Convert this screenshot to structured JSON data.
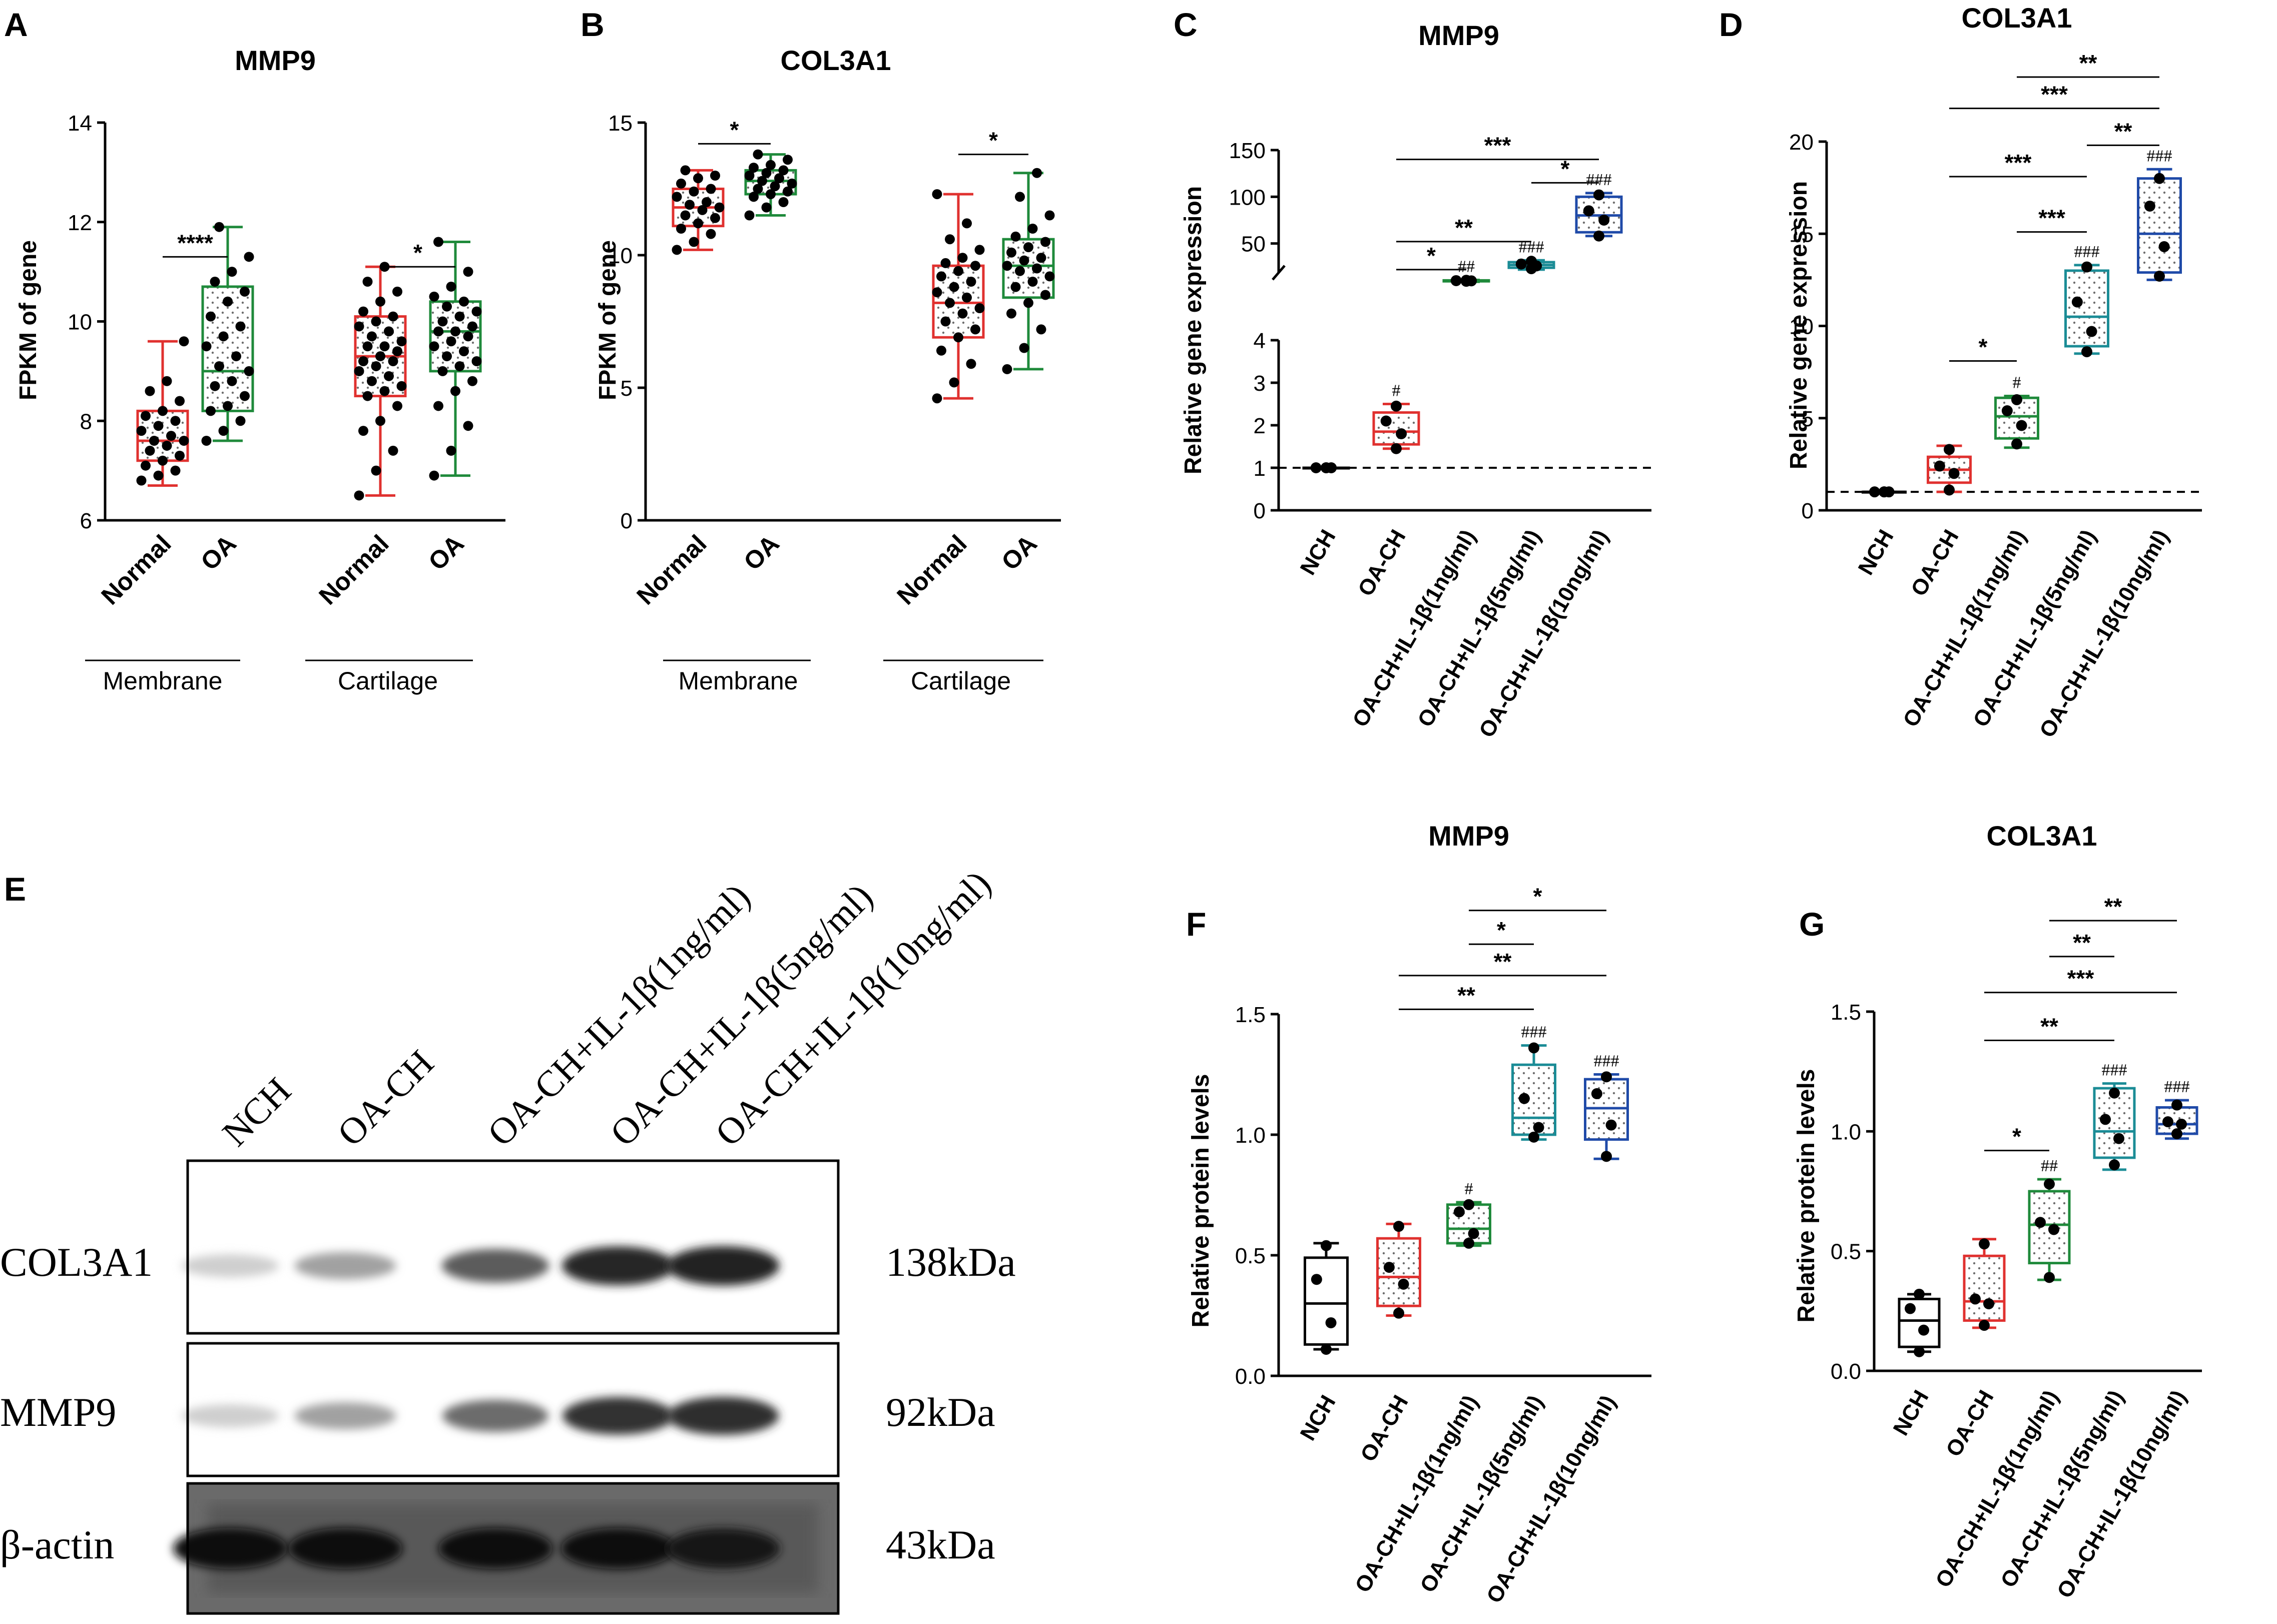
{
  "figure": {
    "colors": {
      "red": "#e0312f",
      "green": "#1f8a3b",
      "teal": "#1b8c96",
      "blue": "#1f4aa8",
      "black": "#000000"
    }
  },
  "panels": {
    "A": {
      "label": "A"
    },
    "B": {
      "label": "B"
    },
    "C": {
      "label": "C"
    },
    "D": {
      "label": "D"
    },
    "E": {
      "label": "E"
    },
    "F": {
      "label": "F"
    },
    "G": {
      "label": "G"
    }
  },
  "chart_data": [
    {
      "id": "A",
      "type": "box",
      "title": "MMP9",
      "ylabel": "FPKM of gene",
      "ylim": [
        6,
        14
      ],
      "yticks": [
        6,
        8,
        10,
        12,
        14
      ],
      "categories": [
        "Normal",
        "OA",
        "Normal",
        "OA"
      ],
      "groups": [
        "Membrane",
        "Cartilage"
      ],
      "colors": [
        "#e0312f",
        "#1f8a3b",
        "#e0312f",
        "#1f8a3b"
      ],
      "boxes": [
        {
          "min": 6.7,
          "q1": 7.2,
          "median": 7.6,
          "q3": 8.2,
          "max": 9.6
        },
        {
          "min": 7.6,
          "q1": 8.2,
          "median": 9.0,
          "q3": 10.7,
          "max": 11.9
        },
        {
          "min": 6.5,
          "q1": 8.5,
          "median": 9.3,
          "q3": 10.1,
          "max": 11.1
        },
        {
          "min": 6.9,
          "q1": 9.0,
          "median": 9.8,
          "q3": 10.4,
          "max": 11.6
        }
      ],
      "points": [
        [
          6.8,
          6.9,
          7.0,
          7.1,
          7.2,
          7.3,
          7.4,
          7.5,
          7.6,
          7.6,
          7.7,
          7.8,
          7.9,
          8.0,
          8.1,
          8.2,
          8.4,
          8.6,
          8.8,
          9.6
        ],
        [
          7.6,
          7.8,
          8.0,
          8.2,
          8.3,
          8.5,
          8.7,
          8.8,
          9.0,
          9.1,
          9.3,
          9.5,
          9.7,
          9.9,
          10.1,
          10.4,
          10.6,
          10.8,
          11.0,
          11.3,
          11.9
        ],
        [
          6.5,
          7.0,
          7.4,
          7.8,
          8.0,
          8.3,
          8.5,
          8.6,
          8.7,
          8.8,
          8.9,
          9.0,
          9.1,
          9.2,
          9.2,
          9.3,
          9.4,
          9.5,
          9.5,
          9.6,
          9.7,
          9.8,
          9.9,
          10.0,
          10.1,
          10.2,
          10.4,
          10.6,
          10.8,
          11.1
        ],
        [
          6.9,
          7.4,
          7.9,
          8.3,
          8.6,
          8.8,
          9.0,
          9.1,
          9.2,
          9.3,
          9.4,
          9.5,
          9.6,
          9.7,
          9.8,
          9.8,
          9.9,
          10.0,
          10.1,
          10.2,
          10.3,
          10.4,
          10.5,
          10.7,
          11.0,
          11.6
        ]
      ],
      "brackets": [
        {
          "from": 0,
          "to": 1,
          "label": "****",
          "y": 11.3
        },
        {
          "from": 2,
          "to": 3,
          "label": "*",
          "y": 11.1
        }
      ]
    },
    {
      "id": "B",
      "type": "box",
      "title": "COL3A1",
      "ylabel": "FPKM of gene",
      "ylim": [
        0,
        15
      ],
      "yticks": [
        0,
        5,
        10,
        15
      ],
      "categories": [
        "Normal",
        "OA",
        "Normal",
        "OA"
      ],
      "groups": [
        "Membrane",
        "Cartilage"
      ],
      "colors": [
        "#e0312f",
        "#1f8a3b",
        "#e0312f",
        "#1f8a3b"
      ],
      "boxes": [
        {
          "min": 10.2,
          "q1": 11.1,
          "median": 11.8,
          "q3": 12.5,
          "max": 13.2
        },
        {
          "min": 11.5,
          "q1": 12.3,
          "median": 12.8,
          "q3": 13.2,
          "max": 13.8
        },
        {
          "min": 4.6,
          "q1": 6.9,
          "median": 8.2,
          "q3": 9.6,
          "max": 12.3
        },
        {
          "min": 5.7,
          "q1": 8.4,
          "median": 9.6,
          "q3": 10.6,
          "max": 13.1
        }
      ],
      "points": [
        [
          10.2,
          10.5,
          10.8,
          11.0,
          11.2,
          11.4,
          11.5,
          11.7,
          11.8,
          11.9,
          12.0,
          12.2,
          12.4,
          12.5,
          12.7,
          12.9,
          13.0,
          13.2
        ],
        [
          11.5,
          11.8,
          12.0,
          12.2,
          12.3,
          12.4,
          12.5,
          12.6,
          12.7,
          12.8,
          12.9,
          13.0,
          13.1,
          13.2,
          13.3,
          13.4,
          13.6,
          13.8
        ],
        [
          4.6,
          5.2,
          5.9,
          6.4,
          6.9,
          7.2,
          7.5,
          7.8,
          8.0,
          8.2,
          8.4,
          8.6,
          8.8,
          9.0,
          9.2,
          9.4,
          9.6,
          9.7,
          9.9,
          10.2,
          10.6,
          11.2,
          12.3
        ],
        [
          5.7,
          6.5,
          7.2,
          7.8,
          8.2,
          8.5,
          8.8,
          9.0,
          9.2,
          9.4,
          9.5,
          9.6,
          9.8,
          9.9,
          10.1,
          10.3,
          10.5,
          10.7,
          11.0,
          11.5,
          12.2,
          13.1
        ]
      ],
      "brackets": [
        {
          "from": 0,
          "to": 1,
          "label": "*",
          "y": 14.2
        },
        {
          "from": 2,
          "to": 3,
          "label": "*",
          "y": 13.8
        }
      ]
    },
    {
      "id": "C",
      "type": "box",
      "title": "MMP9",
      "ylabel": "Relative gene expression",
      "broken_axis": true,
      "ylim_lower": [
        0,
        4
      ],
      "yticks_lower": [
        0,
        1,
        2,
        3,
        4
      ],
      "ylim_upper": [
        0,
        150
      ],
      "yticks_upper": [
        50,
        100,
        150
      ],
      "reference_line": 1,
      "categories": [
        "NCH",
        "OA-CH",
        "OA-CH+IL-1β(1ng/ml)",
        "OA-CH+IL-1β(5ng/ml)",
        "OA-CH+IL-1β(10ng/ml)"
      ],
      "colors": [
        "#000000",
        "#e0312f",
        "#1f8a3b",
        "#1b8c96",
        "#1f4aa8"
      ],
      "boxes": [
        {
          "min": 1.0,
          "q1": 1.0,
          "median": 1.0,
          "q3": 1.0,
          "max": 1.0
        },
        {
          "min": 1.45,
          "q1": 1.55,
          "median": 1.85,
          "q3": 2.3,
          "max": 2.5
        },
        {
          "min": 9,
          "q1": 9.5,
          "median": 10,
          "q3": 10.5,
          "max": 11
        },
        {
          "min": 22,
          "q1": 24,
          "median": 27,
          "q3": 30,
          "max": 32
        },
        {
          "min": 58,
          "q1": 62,
          "median": 80,
          "q3": 100,
          "max": 104
        }
      ],
      "points": [
        [
          1.0,
          1.0,
          1.0,
          1.0
        ],
        [
          1.45,
          1.8,
          2.1,
          2.45
        ],
        [
          9.5,
          10,
          10.2,
          10.6
        ],
        [
          23,
          26,
          28,
          31
        ],
        [
          58,
          75,
          85,
          102
        ]
      ],
      "hash_marks": [
        "",
        "#",
        "##",
        "###",
        "###"
      ],
      "brackets": [
        {
          "from": 1,
          "to": 2,
          "label": "*",
          "y": 22
        },
        {
          "from": 1,
          "to": 3,
          "label": "**",
          "y": 52
        },
        {
          "from": 3,
          "to": 4,
          "label": "*",
          "y": 115
        },
        {
          "from": 1,
          "to": 4,
          "label": "***",
          "y": 140
        }
      ]
    },
    {
      "id": "D",
      "type": "box",
      "title": "COL3A1",
      "ylabel": "Relative gene expression",
      "ylim": [
        0,
        20
      ],
      "yticks": [
        0,
        5,
        10,
        15,
        20
      ],
      "reference_line": 1,
      "categories": [
        "NCH",
        "OA-CH",
        "OA-CH+IL-1β(1ng/ml)",
        "OA-CH+IL-1β(5ng/ml)",
        "OA-CH+IL-1β(10ng/ml)"
      ],
      "colors": [
        "#000000",
        "#e0312f",
        "#1f8a3b",
        "#1b8c96",
        "#1f4aa8"
      ],
      "boxes": [
        {
          "min": 1.0,
          "q1": 1.0,
          "median": 1.0,
          "q3": 1.0,
          "max": 1.0
        },
        {
          "min": 1.0,
          "q1": 1.5,
          "median": 2.2,
          "q3": 2.9,
          "max": 3.5
        },
        {
          "min": 3.4,
          "q1": 3.9,
          "median": 5.1,
          "q3": 6.1,
          "max": 6.2
        },
        {
          "min": 8.5,
          "q1": 8.9,
          "median": 10.5,
          "q3": 13.0,
          "max": 13.3
        },
        {
          "min": 12.5,
          "q1": 12.9,
          "median": 15.0,
          "q3": 18.0,
          "max": 18.5
        }
      ],
      "points": [
        [
          1.0,
          1.0,
          1.0,
          1.0
        ],
        [
          1.1,
          2.0,
          2.4,
          3.3
        ],
        [
          3.6,
          4.6,
          5.4,
          6.0
        ],
        [
          8.6,
          9.7,
          11.3,
          13.2
        ],
        [
          12.7,
          14.3,
          16.5,
          18.0
        ]
      ],
      "hash_marks": [
        "",
        "",
        "#",
        "###",
        "###"
      ],
      "brackets": [
        {
          "from": 1,
          "to": 2,
          "label": "*",
          "y": 8.1
        },
        {
          "from": 2,
          "to": 3,
          "label": "***",
          "y": 15.1
        },
        {
          "from": 1,
          "to": 3,
          "label": "***",
          "y": 18.1
        },
        {
          "from": 3,
          "to": 4,
          "label": "**",
          "y": 19.8
        },
        {
          "from": 1,
          "to": 4,
          "label": "***",
          "y": 21.8
        },
        {
          "from": 2,
          "to": 4,
          "label": "**",
          "y": 23.5
        }
      ]
    },
    {
      "id": "F",
      "type": "box",
      "title": "MMP9",
      "ylabel": "Relative protein levels",
      "ylim": [
        0,
        1.5
      ],
      "yticks": [
        0.0,
        0.5,
        1.0,
        1.5
      ],
      "categories": [
        "NCH",
        "OA-CH",
        "OA-CH+IL-1β(1ng/ml)",
        "OA-CH+IL-1β(5ng/ml)",
        "OA-CH+IL-1β(10ng/ml)"
      ],
      "colors": [
        "#000000",
        "#e0312f",
        "#1f8a3b",
        "#1b8c96",
        "#1f4aa8"
      ],
      "boxes": [
        {
          "min": 0.11,
          "q1": 0.13,
          "median": 0.3,
          "q3": 0.49,
          "max": 0.55
        },
        {
          "min": 0.25,
          "q1": 0.29,
          "median": 0.41,
          "q3": 0.57,
          "max": 0.63
        },
        {
          "min": 0.54,
          "q1": 0.55,
          "median": 0.61,
          "q3": 0.71,
          "max": 0.72
        },
        {
          "min": 0.98,
          "q1": 1.0,
          "median": 1.07,
          "q3": 1.29,
          "max": 1.37
        },
        {
          "min": 0.9,
          "q1": 0.98,
          "median": 1.11,
          "q3": 1.23,
          "max": 1.25
        }
      ],
      "points": [
        [
          0.11,
          0.22,
          0.4,
          0.54
        ],
        [
          0.26,
          0.38,
          0.45,
          0.62
        ],
        [
          0.55,
          0.59,
          0.68,
          0.71
        ],
        [
          0.99,
          1.03,
          1.15,
          1.36
        ],
        [
          0.91,
          1.04,
          1.17,
          1.24
        ]
      ],
      "hash_marks": [
        "",
        "",
        "#",
        "###",
        "###"
      ],
      "brackets": [
        {
          "from": 1,
          "to": 3,
          "label": "**",
          "y": 1.52
        },
        {
          "from": 1,
          "to": 4,
          "label": "**",
          "y": 1.66
        },
        {
          "from": 2,
          "to": 3,
          "label": "*",
          "y": 1.79
        },
        {
          "from": 2,
          "to": 4,
          "label": "*",
          "y": 1.93
        }
      ]
    },
    {
      "id": "G",
      "type": "box",
      "title": "COL3A1",
      "ylabel": "Relative protein levels",
      "ylim": [
        0,
        1.5
      ],
      "yticks": [
        0.0,
        0.5,
        1.0,
        1.5
      ],
      "categories": [
        "NCH",
        "OA-CH",
        "OA-CH+IL-1β(1ng/ml)",
        "OA-CH+IL-1β(5ng/ml)",
        "OA-CH+IL-1β(10ng/ml)"
      ],
      "colors": [
        "#000000",
        "#e0312f",
        "#1f8a3b",
        "#1b8c96",
        "#1f4aa8"
      ],
      "boxes": [
        {
          "min": 0.08,
          "q1": 0.1,
          "median": 0.21,
          "q3": 0.3,
          "max": 0.32
        },
        {
          "min": 0.18,
          "q1": 0.21,
          "median": 0.29,
          "q3": 0.48,
          "max": 0.55
        },
        {
          "min": 0.38,
          "q1": 0.45,
          "median": 0.61,
          "q3": 0.75,
          "max": 0.8
        },
        {
          "min": 0.84,
          "q1": 0.89,
          "median": 1.0,
          "q3": 1.18,
          "max": 1.2
        },
        {
          "min": 0.97,
          "q1": 0.99,
          "median": 1.03,
          "q3": 1.1,
          "max": 1.13
        }
      ],
      "points": [
        [
          0.08,
          0.17,
          0.26,
          0.32
        ],
        [
          0.19,
          0.28,
          0.3,
          0.53
        ],
        [
          0.39,
          0.59,
          0.62,
          0.78
        ],
        [
          0.86,
          0.97,
          1.05,
          1.16
        ],
        [
          0.99,
          1.03,
          1.04,
          1.11
        ]
      ],
      "hash_marks": [
        "",
        "",
        "##",
        "###",
        "###"
      ],
      "brackets": [
        {
          "from": 1,
          "to": 2,
          "label": "*",
          "y": 0.92
        },
        {
          "from": 1,
          "to": 3,
          "label": "**",
          "y": 1.38
        },
        {
          "from": 1,
          "to": 4,
          "label": "***",
          "y": 1.58
        },
        {
          "from": 2,
          "to": 3,
          "label": "**",
          "y": 1.73
        },
        {
          "from": 2,
          "to": 4,
          "label": "**",
          "y": 1.88
        }
      ]
    },
    {
      "id": "E",
      "type": "blot",
      "lanes": [
        "NCH",
        "OA-CH",
        "OA-CH+IL-1β(1ng/ml)",
        "OA-CH+IL-1β(5ng/ml)",
        "OA-CH+IL-1β(10ng/ml)"
      ],
      "rows": [
        {
          "protein": "COL3A1",
          "size": "138kDa",
          "intensity": [
            0.12,
            0.32,
            0.62,
            0.86,
            0.88
          ]
        },
        {
          "protein": "MMP9",
          "size": "92kDa",
          "intensity": [
            0.12,
            0.32,
            0.55,
            0.8,
            0.82
          ]
        },
        {
          "protein": "β-actin",
          "size": "43kDa",
          "intensity": [
            0.95,
            0.95,
            0.95,
            0.95,
            0.92
          ]
        }
      ]
    }
  ]
}
